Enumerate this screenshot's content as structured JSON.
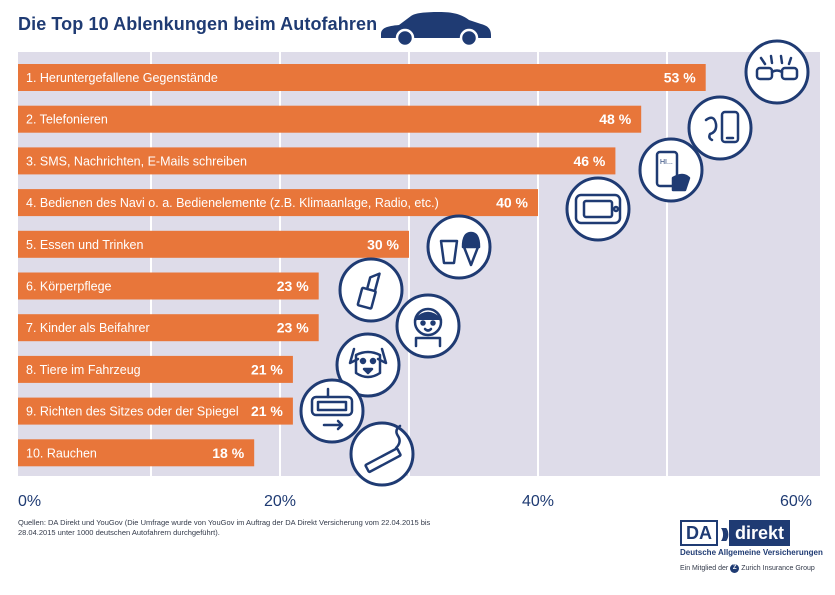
{
  "title": "Die Top 10 Ablenkungen beim Autofahren",
  "chart_data": {
    "type": "bar",
    "orientation": "horizontal",
    "categories": [
      "1. Heruntergefallene Gegenstände",
      "2. Telefonieren",
      "3. SMS, Nachrichten, E-Mails schreiben",
      "4. Bedienen des Navi o. a.  Bedienelemente (z.B. Klimaanlage, Radio, etc.)",
      "5. Essen und Trinken",
      "6. Körperpflege",
      "7. Kinder als Beifahrer",
      "8. Tiere im Fahrzeug",
      "9. Richten des Sitzes oder der Spiegel",
      "10. Rauchen"
    ],
    "values": [
      53,
      48,
      46,
      40,
      30,
      23,
      23,
      21,
      21,
      18
    ],
    "value_labels": [
      "53 %",
      "48 %",
      "46 %",
      "40 %",
      "30 %",
      "23 %",
      "23 %",
      "21 %",
      "21 %",
      "18 %"
    ],
    "icons": [
      "glasses-icon",
      "phone-ear-icon",
      "smartphone-hand-icon",
      "navigation-device-icon",
      "drink-icecream-icon",
      "lipstick-icon",
      "child-icon",
      "dog-icon",
      "mirror-icon",
      "cigarette-icon"
    ],
    "xlim": [
      0,
      60
    ],
    "xticks": [
      0,
      20,
      40,
      60
    ],
    "xtick_labels": [
      "0%",
      "20%",
      "40%",
      "60%"
    ],
    "grid": true,
    "bar_color": "#e8763a",
    "background_color": "#dedce9",
    "grid_color": "#ffffff",
    "accent_color": "#1f3b73"
  },
  "source": "Quellen: DA Direkt und YouGov (Die Umfrage wurde von YouGov im Auftrag der DA Direkt Versicherung vom 22.04.2015 bis 28.04.2015 unter 1000 deutschen Autofahrern durchgeführt).",
  "logo": {
    "da": "DA",
    "direkt": "direkt",
    "subtitle": "Deutsche Allgemeine Versicherungen",
    "member": "Ein Mitglied der",
    "group": "Zurich Insurance Group"
  }
}
